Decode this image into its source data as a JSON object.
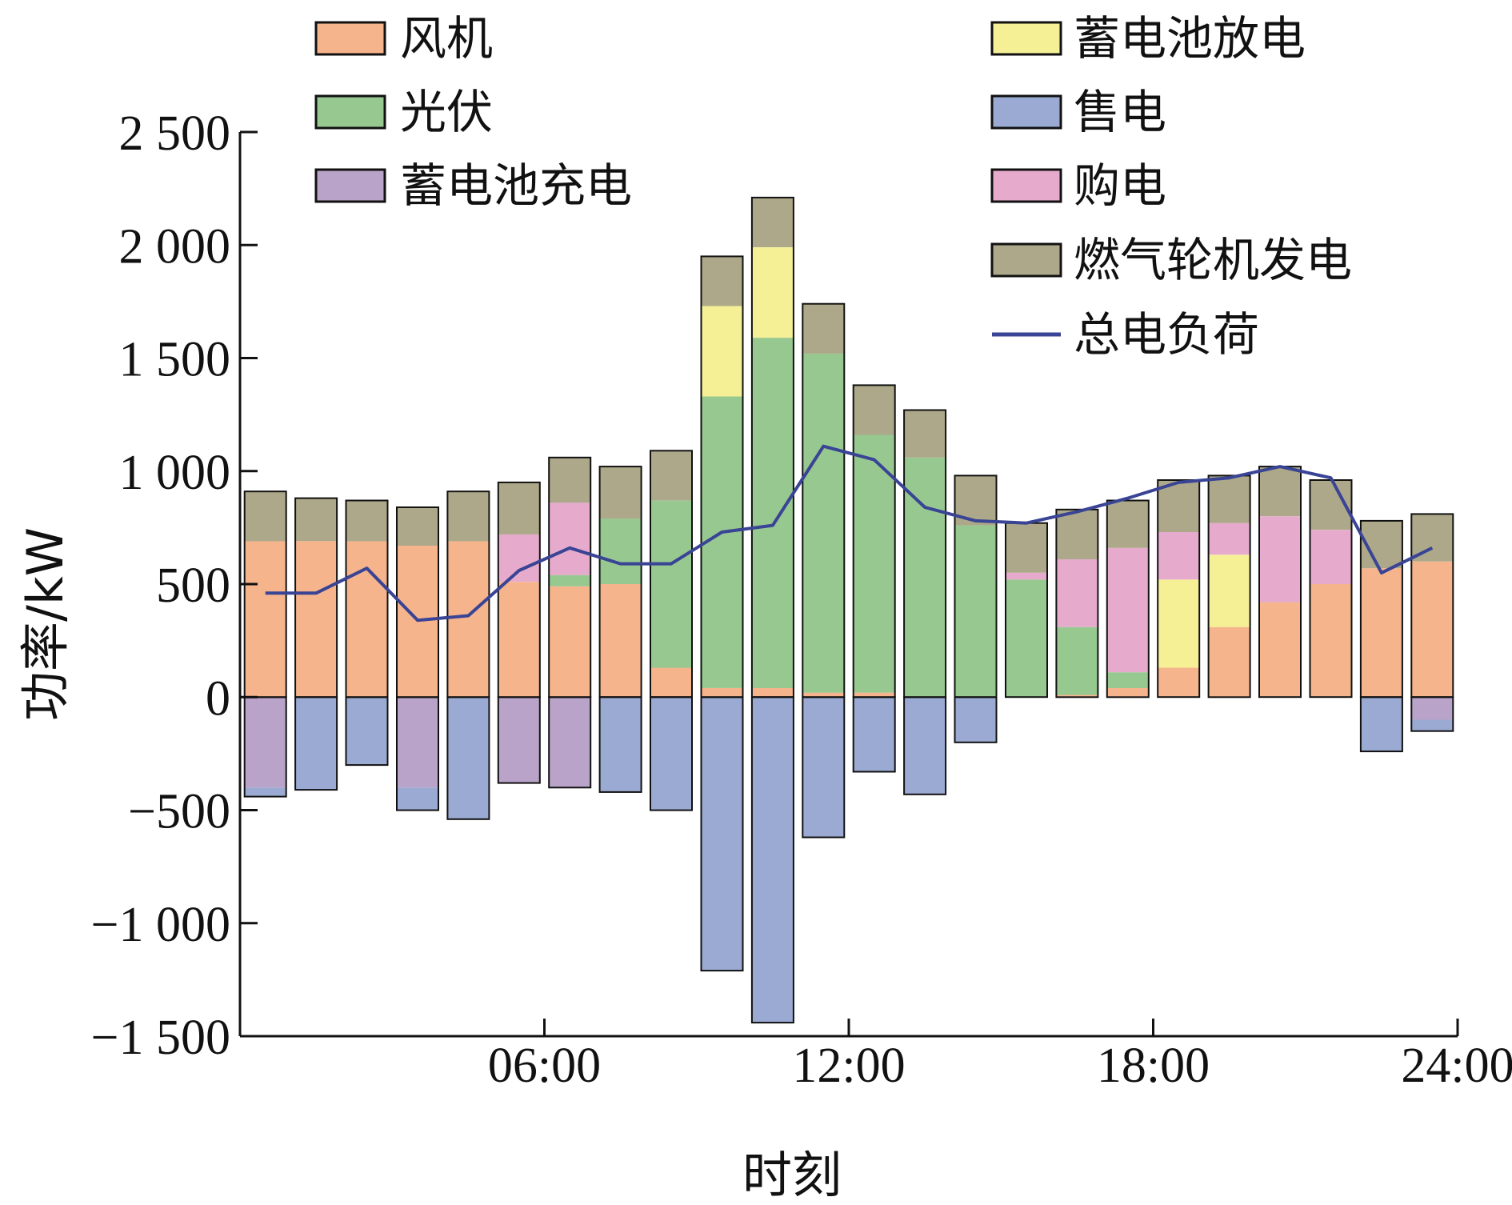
{
  "chart_data": {
    "type": "bar",
    "stacked": true,
    "xlabel": "时刻",
    "ylabel": "功率/kW",
    "ylim": [
      -1500,
      2500
    ],
    "yticks": [
      -1500,
      -1000,
      -500,
      0,
      500,
      1000,
      1500,
      2000,
      2500
    ],
    "ytick_labels": [
      "−1 500",
      "−1 000",
      "−500",
      "0",
      "500",
      "1 000",
      "1 500",
      "2 000",
      "2 500"
    ],
    "xlim": [
      0.5,
      24.5
    ],
    "xticks": [
      6.5,
      12.5,
      18.5,
      24.5
    ],
    "xtick_labels": [
      "06:00",
      "12:00",
      "18:00",
      "24:00"
    ],
    "hours": [
      1,
      2,
      3,
      4,
      5,
      6,
      7,
      8,
      9,
      10,
      11,
      12,
      13,
      14,
      15,
      16,
      17,
      18,
      19,
      20,
      21,
      22,
      23,
      24
    ],
    "legend_placement": "top",
    "grid": false,
    "series": [
      {
        "name": "风机",
        "key": "wind",
        "color": "#f5b48c",
        "values": [
          690,
          690,
          690,
          670,
          690,
          510,
          490,
          500,
          130,
          40,
          40,
          20,
          20,
          0,
          0,
          0,
          10,
          40,
          130,
          310,
          420,
          500,
          570,
          600
        ]
      },
      {
        "name": "光伏",
        "key": "pv",
        "color": "#96c890",
        "values": [
          0,
          0,
          0,
          0,
          0,
          0,
          50,
          290,
          740,
          1290,
          1550,
          1500,
          1140,
          1060,
          760,
          520,
          300,
          70,
          0,
          0,
          0,
          0,
          0,
          0
        ]
      },
      {
        "name": "蓄电池充电",
        "key": "bat_charge",
        "color": "#b9a3c8",
        "values": [
          -400,
          0,
          0,
          -400,
          0,
          -380,
          -400,
          0,
          0,
          0,
          0,
          0,
          0,
          0,
          0,
          0,
          0,
          0,
          0,
          0,
          0,
          0,
          0,
          -100
        ]
      },
      {
        "name": "蓄电池放电",
        "key": "bat_discharge",
        "color": "#f5f096",
        "values": [
          0,
          0,
          0,
          0,
          0,
          0,
          0,
          0,
          0,
          400,
          400,
          0,
          0,
          0,
          0,
          0,
          0,
          0,
          390,
          320,
          0,
          0,
          0,
          0
        ]
      },
      {
        "name": "售电",
        "key": "sell",
        "color": "#9aaad2",
        "values": [
          -40,
          -410,
          -300,
          -100,
          -540,
          0,
          0,
          -420,
          -500,
          -1210,
          -1440,
          -620,
          -330,
          -430,
          -200,
          0,
          0,
          0,
          0,
          0,
          0,
          0,
          -240,
          -50
        ]
      },
      {
        "name": "购电",
        "key": "buy",
        "color": "#e6aacd",
        "values": [
          0,
          0,
          0,
          0,
          0,
          210,
          320,
          0,
          0,
          0,
          0,
          0,
          0,
          0,
          0,
          30,
          300,
          550,
          210,
          140,
          380,
          240,
          0,
          0
        ]
      },
      {
        "name": "燃气轮机发电",
        "key": "gas",
        "color": "#aca889",
        "values": [
          220,
          190,
          180,
          170,
          220,
          230,
          200,
          230,
          220,
          220,
          220,
          220,
          220,
          210,
          220,
          220,
          220,
          210,
          230,
          210,
          220,
          220,
          210,
          210
        ]
      }
    ],
    "load": {
      "name": "总电负荷",
      "color": "#3a4495",
      "values": [
        460,
        460,
        570,
        340,
        360,
        560,
        660,
        590,
        590,
        730,
        760,
        1110,
        1050,
        840,
        780,
        770,
        820,
        880,
        950,
        970,
        1020,
        970,
        550,
        660
      ]
    }
  }
}
